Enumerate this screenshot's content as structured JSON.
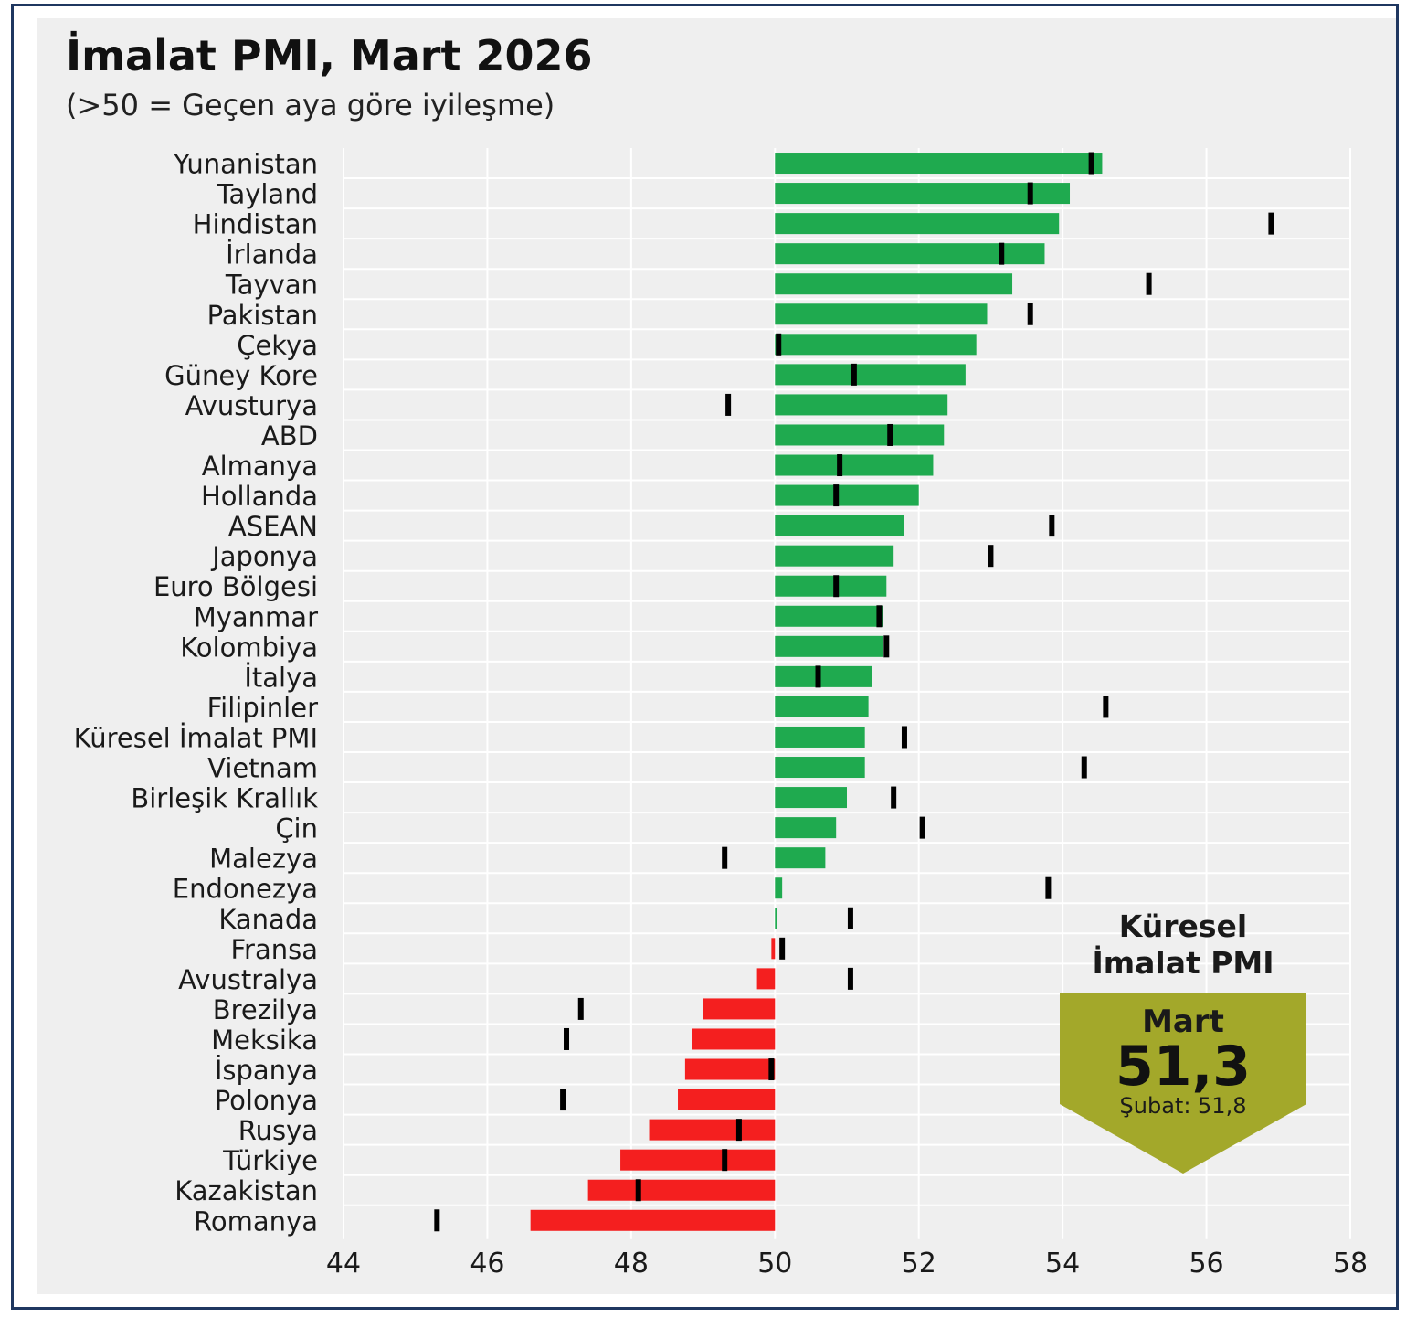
{
  "title": "İmalat PMI, Mart 2026",
  "subtitle": "(>50 = Geçen aya göre iyileşme)",
  "badge": {
    "title": "Küresel\nİmalat PMI",
    "month": "Mart",
    "value": "51,3",
    "previous": "Şubat: 51,8"
  },
  "colors": {
    "positive": "#1faa4f",
    "negative": "#f41f1f",
    "marker": "#000000",
    "badge": "#a3a82a",
    "panel": "#efefef",
    "grid": "#ffffff"
  },
  "chart_data": {
    "type": "bar",
    "orientation": "horizontal",
    "baseline": 50,
    "xlim": [
      44,
      58
    ],
    "xticks": [
      44,
      46,
      48,
      50,
      52,
      54,
      56,
      58
    ],
    "grid": true,
    "legend": "none",
    "categories": [
      "Yunanistan",
      "Tayland",
      "Hindistan",
      "İrlanda",
      "Tayvan",
      "Pakistan",
      "Çekya",
      "Güney Kore",
      "Avusturya",
      "ABD",
      "Almanya",
      "Hollanda",
      "ASEAN",
      "Japonya",
      "Euro Bölgesi",
      "Myanmar",
      "Kolombiya",
      "İtalya",
      "Filipinler",
      "Küresel İmalat PMI",
      "Vietnam",
      "Birleşik Krallık",
      "Çin",
      "Malezya",
      "Endonezya",
      "Kanada",
      "Fransa",
      "Avustralya",
      "Brezilya",
      "Meksika",
      "İspanya",
      "Polonya",
      "Rusya",
      "Türkiye",
      "Kazakistan",
      "Romanya"
    ],
    "series": [
      {
        "values": [
          54.55,
          54.1,
          53.95,
          53.75,
          53.3,
          52.95,
          52.8,
          52.65,
          52.4,
          52.35,
          52.2,
          52.0,
          51.8,
          51.65,
          51.55,
          51.5,
          51.5,
          51.35,
          51.3,
          51.25,
          51.25,
          51.0,
          50.85,
          50.7,
          50.1,
          50.0,
          49.95,
          49.75,
          49.0,
          48.85,
          48.75,
          48.65,
          48.25,
          47.85,
          47.4,
          46.6
        ]
      },
      {
        "values": [
          54.4,
          53.55,
          56.9,
          53.15,
          55.2,
          53.55,
          50.05,
          51.1,
          49.35,
          51.6,
          50.9,
          50.85,
          53.85,
          53.0,
          50.85,
          51.45,
          51.55,
          50.6,
          54.6,
          51.8,
          54.3,
          51.65,
          52.05,
          49.3,
          53.8,
          51.05,
          50.1,
          51.05,
          47.3,
          47.1,
          49.95,
          47.05,
          49.5,
          49.3,
          48.1,
          45.3
        ]
      }
    ]
  }
}
